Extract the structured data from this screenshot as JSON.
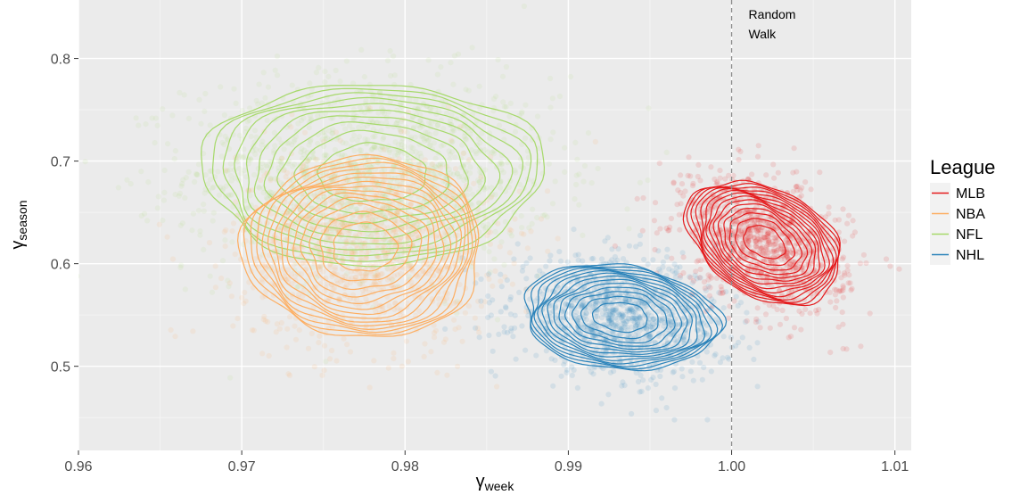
{
  "chart_data": {
    "type": "scatter",
    "subtype": "2d-density-contour",
    "xlabel": {
      "main": "γ",
      "sub": "week"
    },
    "ylabel": {
      "main": "γ",
      "sub": "season"
    },
    "xlim": [
      0.96,
      1.011
    ],
    "ylim": [
      0.418,
      0.857
    ],
    "x_ticks": [
      {
        "value": 0.96,
        "label": "0.96"
      },
      {
        "value": 0.97,
        "label": "0.97"
      },
      {
        "value": 0.98,
        "label": "0.98"
      },
      {
        "value": 0.99,
        "label": "0.99"
      },
      {
        "value": 1.0,
        "label": "1.00"
      },
      {
        "value": 1.01,
        "label": "1.01"
      }
    ],
    "y_ticks": [
      {
        "value": 0.5,
        "label": "0.5"
      },
      {
        "value": 0.6,
        "label": "0.6"
      },
      {
        "value": 0.7,
        "label": "0.7"
      },
      {
        "value": 0.8,
        "label": "0.8"
      }
    ],
    "grid": true,
    "background": "#ebebeb",
    "legend": {
      "title": "League",
      "position": "right",
      "entries": [
        "MLB",
        "NBA",
        "NFL",
        "NHL"
      ]
    },
    "reference_line": {
      "x": 1.0,
      "style": "dashed",
      "label_lines": [
        "Random",
        "Walk"
      ]
    },
    "series": [
      {
        "name": "MLB",
        "color": "#e41a1c",
        "center": [
          1.002,
          0.621
        ],
        "sd": [
          0.0022,
          0.028
        ],
        "corr": -0.35,
        "levels": 14
      },
      {
        "name": "NBA",
        "color": "#fdae61",
        "center": [
          0.9775,
          0.616
        ],
        "sd": [
          0.0034,
          0.041
        ],
        "corr": 0.0,
        "levels": 14
      },
      {
        "name": "NFL",
        "color": "#a6d96a",
        "center": [
          0.978,
          0.688
        ],
        "sd": [
          0.0045,
          0.038
        ],
        "corr": 0.0,
        "levels": 10
      },
      {
        "name": "NHL",
        "color": "#2b83ba",
        "center": [
          0.9932,
          0.548
        ],
        "sd": [
          0.0028,
          0.024
        ],
        "corr": -0.15,
        "levels": 13
      }
    ]
  }
}
